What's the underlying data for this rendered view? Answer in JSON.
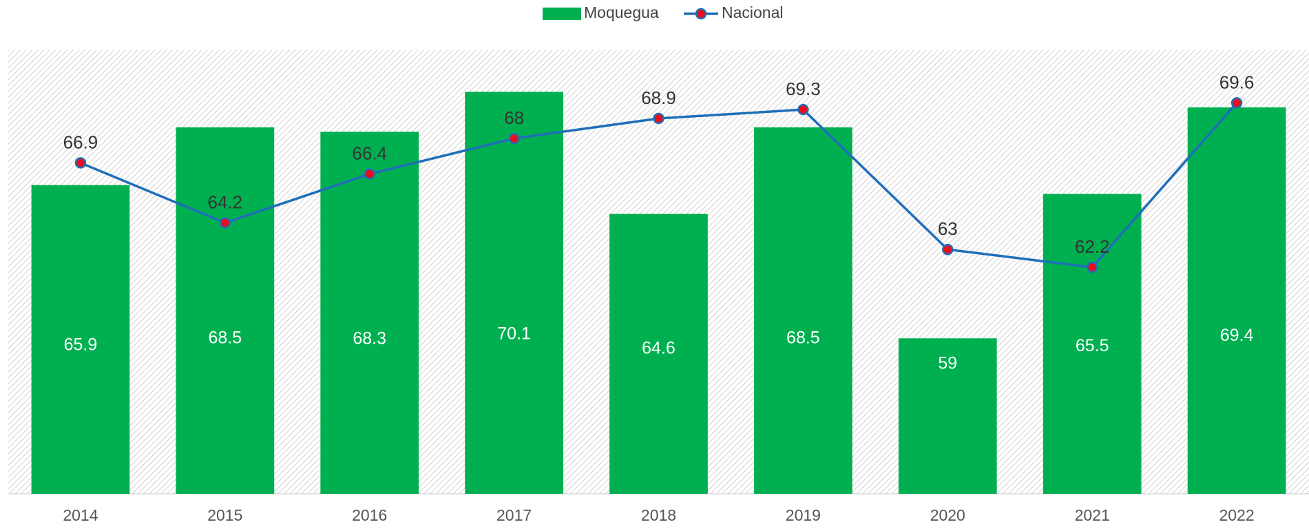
{
  "chart_data": {
    "type": "bar-line",
    "categories": [
      "2014",
      "2015",
      "2016",
      "2017",
      "2018",
      "2019",
      "2020",
      "2021",
      "2022"
    ],
    "series": [
      {
        "name": "Moquegua",
        "type": "bar",
        "color": "#00b050",
        "values": [
          65.9,
          68.5,
          68.3,
          70.1,
          64.6,
          68.5,
          59,
          65.5,
          69.4
        ]
      },
      {
        "name": "Nacional",
        "type": "line",
        "color": "#1f6fb8",
        "marker_color": "#e8101c",
        "values": [
          66.9,
          64.2,
          66.4,
          68,
          68.9,
          69.3,
          63,
          62.2,
          69.6
        ]
      }
    ],
    "ylim": [
      52,
      72
    ],
    "legend": "top"
  }
}
